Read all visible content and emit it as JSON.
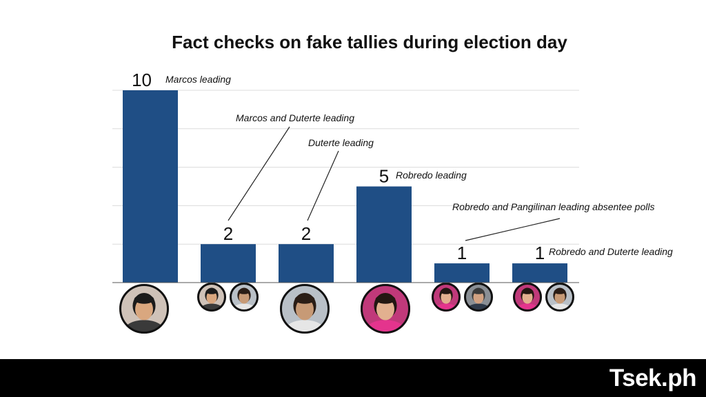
{
  "colors": {
    "bar": "#1f4e85",
    "footer": "#000000",
    "logo_text": "#ffffff",
    "logo_check": "#8cc63f"
  },
  "chart_data": {
    "type": "bar",
    "title": "Fact checks on fake tallies during election day",
    "categories": [
      "Marcos leading",
      "Marcos and Duterte leading",
      "Duterte leading",
      "Robredo leading",
      "Robredo and Pangilinan leading absentee polls",
      "Robredo and Duterte leading"
    ],
    "values": [
      10,
      2,
      2,
      5,
      1,
      1
    ],
    "data_labels": [
      "10",
      "2",
      "2",
      "5",
      "1",
      "1"
    ],
    "ylim": [
      0,
      10
    ],
    "grid": true,
    "xlabel": "",
    "ylabel": ""
  },
  "footer": {
    "logo_text": "Tsek.ph"
  }
}
